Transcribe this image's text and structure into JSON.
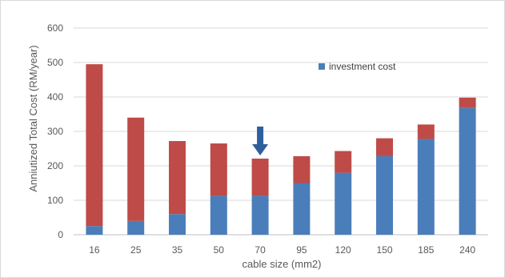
{
  "chart_data": {
    "type": "bar",
    "stacked": true,
    "categories": [
      "16",
      "25",
      "35",
      "50",
      "70",
      "95",
      "120",
      "150",
      "185",
      "240"
    ],
    "series": [
      {
        "name": "investment cost",
        "color": "#4a7ebb",
        "values": [
          25,
          40,
          60,
          113,
          113,
          150,
          180,
          228,
          278,
          368
        ]
      },
      {
        "color": "#be4b48",
        "values": [
          470,
          300,
          212,
          152,
          108,
          78,
          63,
          52,
          42,
          30
        ]
      }
    ],
    "xlabel": "cable size (mm2)",
    "ylabel": "Anniutized Total Cost (RM/year)",
    "ylim": [
      0,
      600
    ],
    "yticks": [
      0,
      100,
      200,
      300,
      400,
      500,
      600
    ],
    "grid": true,
    "legend": "top-right",
    "annotation": {
      "type": "arrow-down",
      "category": "70",
      "color": "#2e5e9e"
    }
  }
}
